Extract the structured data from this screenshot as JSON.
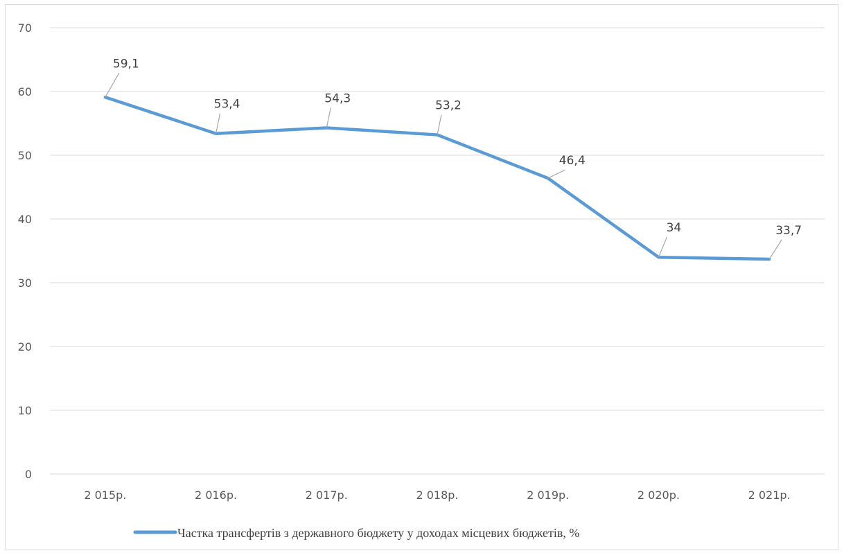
{
  "chart_data": {
    "type": "line",
    "categories": [
      "2 015р.",
      "2 016р.",
      "2 017р.",
      "2 018р.",
      "2 019р.",
      "2 020р.",
      "2 021р."
    ],
    "series": [
      {
        "name": "Частка трансфертів з державного бюджету у доходах  місцевих бюджетів, %",
        "values": [
          59.1,
          53.4,
          54.3,
          53.2,
          46.4,
          34,
          33.7
        ],
        "data_labels": [
          "59,1",
          "53,4",
          "54,3",
          "53,2",
          "46,4",
          "34",
          "33,7"
        ],
        "color": "#5b9bd5"
      }
    ],
    "ylim": [
      0,
      70
    ],
    "yticks": [
      0,
      10,
      20,
      30,
      40,
      50,
      60,
      70
    ],
    "grid": true,
    "legend": "bottom",
    "colors": {
      "line": "#5b9bd5",
      "grid": "#d9d9d9",
      "leader": "#a6a6a6",
      "tick_text": "#595959"
    }
  }
}
